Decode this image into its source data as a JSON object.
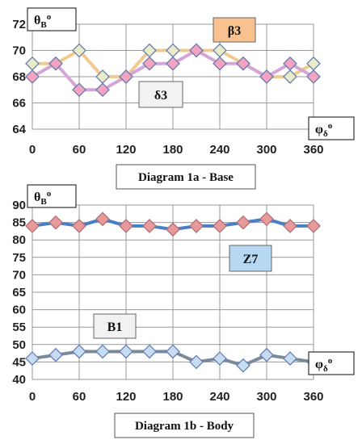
{
  "chart_data": [
    {
      "type": "line",
      "title": "Diagram 1a - Base",
      "ylabel_prefix": "θ",
      "ylabel_sub": "B",
      "ylabel_sup": "o",
      "xlabel_prefix": "φ",
      "xlabel_sub": "δ",
      "xlabel_sup": "o",
      "xlim": [
        0,
        360
      ],
      "ylim": [
        64,
        72
      ],
      "xticks": [
        0,
        60,
        120,
        180,
        240,
        300,
        360
      ],
      "yticks": [
        64,
        66,
        68,
        70,
        72
      ],
      "grid": true,
      "x": [
        0,
        30,
        60,
        90,
        120,
        150,
        180,
        210,
        240,
        270,
        300,
        330,
        360
      ],
      "series": [
        {
          "name": "β3",
          "color": "#f2c98e",
          "marker_fill": "#e8ecc8",
          "values": [
            69,
            69,
            70,
            68,
            68,
            70,
            70,
            70,
            70,
            69,
            68,
            68,
            69
          ]
        },
        {
          "name": "δ3",
          "color": "#d4a6d8",
          "marker_fill": "#f4a3c0",
          "values": [
            68,
            69,
            67,
            67,
            68,
            69,
            69,
            70,
            69,
            69,
            68,
            69,
            68
          ]
        }
      ]
    },
    {
      "type": "line",
      "title": "Diagram 1b - Body",
      "ylabel_prefix": "θ",
      "ylabel_sub": "B",
      "ylabel_sup": "o",
      "xlabel_prefix": "φ",
      "xlabel_sub": "δ",
      "xlabel_sup": "o",
      "xlim": [
        0,
        360
      ],
      "ylim": [
        40,
        90
      ],
      "xticks": [
        0,
        60,
        120,
        180,
        240,
        300,
        360
      ],
      "yticks": [
        40,
        45,
        50,
        55,
        60,
        65,
        70,
        75,
        80,
        85,
        90
      ],
      "grid": true,
      "x": [
        0,
        30,
        60,
        90,
        120,
        150,
        180,
        210,
        240,
        270,
        300,
        330,
        360
      ],
      "series": [
        {
          "name": "Z7",
          "color": "#4a7fc4",
          "marker_fill": "#e89a9a",
          "values": [
            84,
            85,
            84,
            86,
            84,
            84,
            83,
            84,
            84,
            85,
            86,
            84,
            84
          ]
        },
        {
          "name": "B1",
          "color": "#7a8a9a",
          "marker_fill": "#c6dcf2",
          "values": [
            46,
            47,
            48,
            48,
            48,
            48,
            48,
            45,
            46,
            44,
            47,
            46,
            45
          ]
        }
      ]
    }
  ]
}
